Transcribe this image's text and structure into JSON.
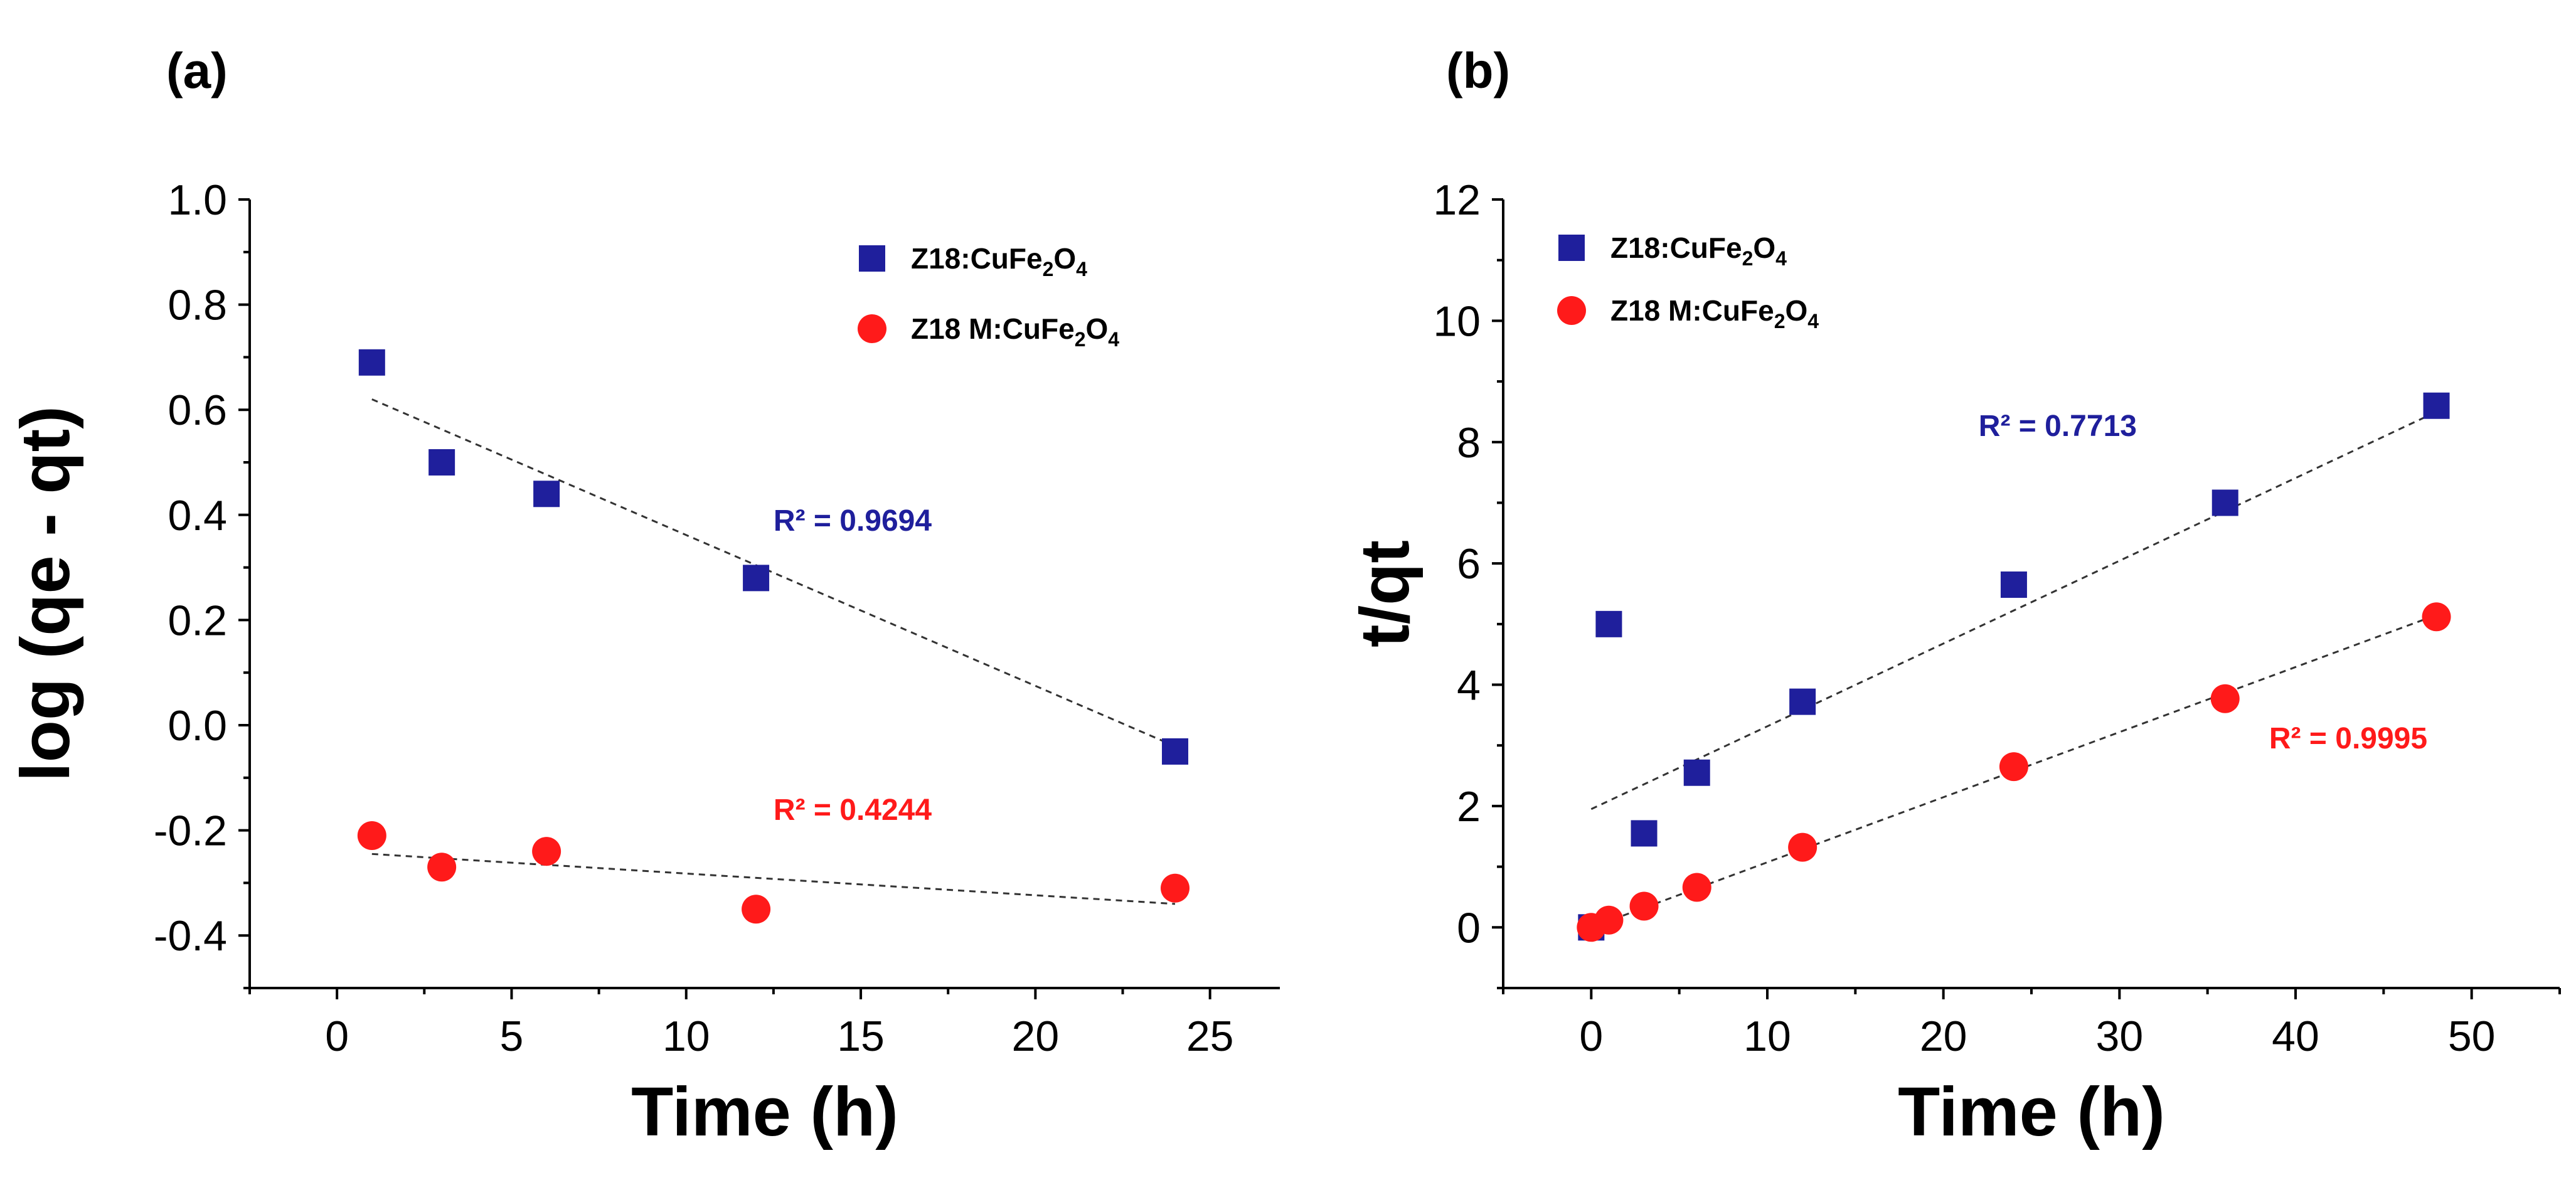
{
  "chart_data": [
    {
      "type": "scatter",
      "panel_label": "(a)",
      "xlabel": "Time (h)",
      "ylabel": "log (qe - qt)",
      "xlim": [
        -2.5,
        27
      ],
      "ylim": [
        -0.5,
        1.0
      ],
      "xticks": [
        0,
        5,
        10,
        15,
        20,
        25
      ],
      "yticks": [
        -0.4,
        -0.2,
        0.0,
        0.2,
        0.4,
        0.6,
        0.8,
        1.0
      ],
      "ytick_labels": [
        "-0.4",
        "-0.2",
        "0.0",
        "0.2",
        "0.4",
        "0.6",
        "0.8",
        "1.0"
      ],
      "legend_position": "top-right",
      "series": [
        {
          "name": "Z18:CuFe",
          "name_sub1": "2",
          "name_mid": "O",
          "name_sub2": "4",
          "marker": "square",
          "color": "#1f1f9c",
          "x": [
            1,
            3,
            6,
            12,
            24
          ],
          "y": [
            0.69,
            0.5,
            0.44,
            0.28,
            -0.05
          ],
          "trendline": {
            "x": [
              1,
              24
            ],
            "y": [
              0.62,
              -0.04
            ]
          },
          "r2_text": "R² = 0.9694",
          "r2_anchor": {
            "x": 12.5,
            "y": 0.37
          }
        },
        {
          "name": "Z18 M:CuFe",
          "name_sub1": "2",
          "name_mid": "O",
          "name_sub2": "4",
          "marker": "circle",
          "color": "#ff1a1a",
          "x": [
            1,
            3,
            6,
            12,
            24
          ],
          "y": [
            -0.21,
            -0.27,
            -0.24,
            -0.35,
            -0.31
          ],
          "trendline": {
            "x": [
              1,
              24
            ],
            "y": [
              -0.245,
              -0.34
            ]
          },
          "r2_text": "R² = 0.4244",
          "r2_anchor": {
            "x": 12.5,
            "y": -0.18
          }
        }
      ]
    },
    {
      "type": "scatter",
      "panel_label": "(b)",
      "xlabel": "Time (h)",
      "ylabel": "t/qt",
      "xlim": [
        -5,
        55
      ],
      "ylim": [
        -1,
        12
      ],
      "xticks": [
        0,
        10,
        20,
        30,
        40,
        50
      ],
      "yticks": [
        0,
        2,
        4,
        6,
        8,
        10,
        12
      ],
      "ytick_labels": [
        "0",
        "2",
        "4",
        "6",
        "8",
        "10",
        "12"
      ],
      "legend_position": "top-left",
      "series": [
        {
          "name": "Z18:CuFe",
          "name_sub1": "2",
          "name_mid": "O",
          "name_sub2": "4",
          "marker": "square",
          "color": "#1f1f9c",
          "x": [
            0,
            1,
            3,
            6,
            12,
            24,
            36,
            48
          ],
          "y": [
            0,
            5.0,
            1.55,
            2.55,
            3.72,
            5.65,
            7.0,
            8.6
          ],
          "trendline": {
            "x": [
              0,
              48
            ],
            "y": [
              1.95,
              8.5
            ]
          },
          "r2_text": "R² = 0.7713",
          "r2_anchor": {
            "x": 22,
            "y": 8.1
          }
        },
        {
          "name": "Z18 M:CuFe",
          "name_sub1": "2",
          "name_mid": "O",
          "name_sub2": "4",
          "marker": "circle",
          "color": "#ff1a1a",
          "x": [
            0,
            1,
            3,
            6,
            12,
            24,
            36,
            48
          ],
          "y": [
            0,
            0.12,
            0.35,
            0.66,
            1.32,
            2.65,
            3.77,
            5.12
          ],
          "trendline": {
            "x": [
              0,
              48
            ],
            "y": [
              0.0,
              5.15
            ]
          },
          "r2_text": "R² = 0.9995",
          "r2_anchor": {
            "x": 38.5,
            "y": 2.95
          }
        }
      ]
    }
  ]
}
